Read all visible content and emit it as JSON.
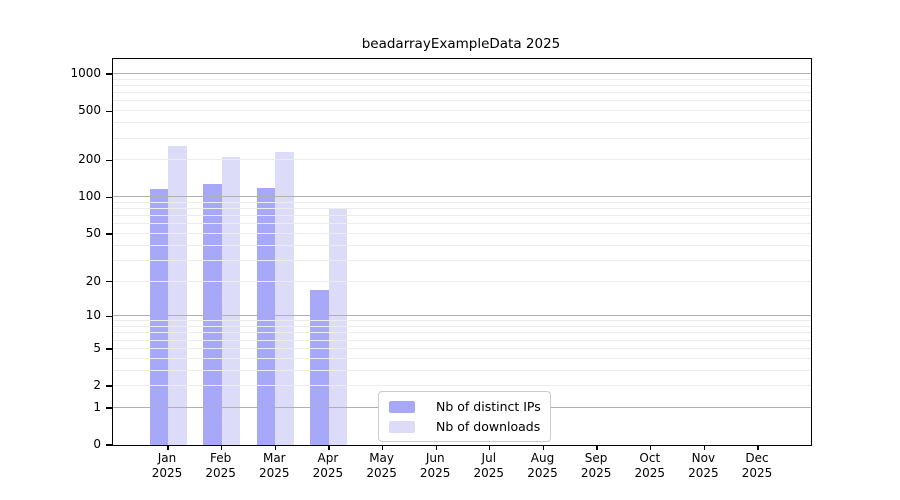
{
  "title": "beadarrayExampleData 2025",
  "chart_data": {
    "type": "bar",
    "title": "beadarrayExampleData 2025",
    "categories": [
      "Jan 2025",
      "Feb 2025",
      "Mar 2025",
      "Apr 2025",
      "May 2025",
      "Jun 2025",
      "Jul 2025",
      "Aug 2025",
      "Sep 2025",
      "Oct 2025",
      "Nov 2025",
      "Dec 2025"
    ],
    "series": [
      {
        "name": "Nb of distinct IPs",
        "color": "#a8a8f8",
        "values": [
          116,
          127,
          118,
          17,
          0,
          0,
          0,
          0,
          0,
          0,
          0,
          0
        ]
      },
      {
        "name": "Nb of downloads",
        "color": "#dcdcf8",
        "values": [
          262,
          214,
          235,
          82,
          0,
          0,
          0,
          0,
          0,
          0,
          0,
          0
        ]
      }
    ],
    "xlabel": "",
    "ylabel": "",
    "yscale": "log1p",
    "ylim": [
      0,
      1000
    ],
    "yticks": [
      0,
      1,
      2,
      5,
      10,
      20,
      50,
      100,
      200,
      500,
      1000
    ],
    "grid": "on",
    "legend_position": "lower center"
  }
}
